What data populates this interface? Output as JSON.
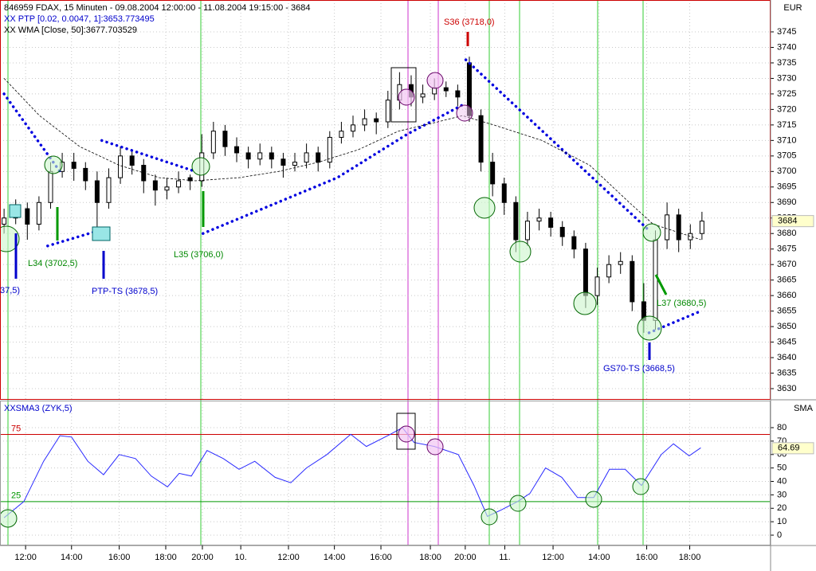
{
  "chart_data": [
    {
      "type": "candlestick",
      "title": "846959  FDAX, 15 Minuten - 09.08.2004 12:00:00 - 11.08.2004 19:15:00 - 3684",
      "axis_label": "EUR",
      "last_value": 3684,
      "xlim": [
        0,
        132.5
      ],
      "ylim": [
        3626.41,
        3755.27
      ],
      "yticks": [
        3630,
        3635,
        3640,
        3645,
        3650,
        3655,
        3660,
        3665,
        3670,
        3675,
        3680,
        3685,
        3690,
        3695,
        3700,
        3705,
        3710,
        3715,
        3720,
        3725,
        3730,
        3735,
        3740,
        3745
      ],
      "grid": true,
      "candles": {
        "x": [
          0.7,
          2.7,
          4.7,
          6.7,
          8.7,
          10.7,
          12.7,
          14.7,
          16.7,
          18.7,
          20.7,
          22.7,
          24.7,
          26.7,
          28.7,
          30.7,
          32.7,
          34.7,
          36.7,
          38.7,
          40.7,
          42.7,
          44.7,
          46.7,
          48.7,
          50.7,
          52.7,
          54.7,
          56.7,
          58.7,
          60.7,
          62.7,
          64.7,
          66.7,
          68.7,
          70.7,
          72.7,
          74.7,
          76.7,
          78.7,
          80.7,
          82.7,
          84.7,
          86.7,
          88.7,
          90.7,
          92.7,
          94.7,
          96.7,
          98.7,
          100.7,
          102.7,
          104.7,
          106.7,
          108.7,
          110.7,
          112.7,
          114.7,
          116.7,
          118.7,
          120.7
        ],
        "open": [
          3683,
          3685,
          3688,
          3683,
          3690,
          3700,
          3703,
          3701,
          3697,
          3690,
          3698,
          3705,
          3702,
          3697,
          3694,
          3695,
          3698,
          3697,
          3706,
          3713,
          3708,
          3706,
          3704,
          3706,
          3704,
          3702,
          3703,
          3706,
          3703,
          3711,
          3713,
          3715,
          3717,
          3716,
          3723,
          3728,
          3724,
          3725,
          3727,
          3726,
          3735,
          3718,
          3703,
          3696,
          3690,
          3678,
          3684,
          3685,
          3682,
          3679,
          3675,
          3660,
          3666,
          3670,
          3671,
          3658,
          3652,
          3678,
          3686,
          3678,
          3680
        ],
        "high": [
          3688,
          3691,
          3690,
          3692,
          3703,
          3706,
          3706,
          3703,
          3700,
          3701,
          3708,
          3707,
          3704,
          3699,
          3698,
          3700,
          3699,
          3712,
          3716,
          3715,
          3711,
          3708,
          3709,
          3708,
          3706,
          3706,
          3709,
          3708,
          3713,
          3716,
          3718,
          3720,
          3719,
          3726,
          3732,
          3731,
          3728,
          3730,
          3729,
          3728,
          3737,
          3720,
          3706,
          3698,
          3692,
          3687,
          3688,
          3687,
          3684,
          3681,
          3677,
          3669,
          3673,
          3674,
          3673,
          3664,
          3681,
          3690,
          3688,
          3683,
          3687
        ],
        "low": [
          3680,
          3683,
          3678,
          3681,
          3688,
          3698,
          3697,
          3694,
          3680,
          3688,
          3696,
          3699,
          3693,
          3689,
          3691,
          3693,
          3694,
          3695,
          3704,
          3705,
          3703,
          3701,
          3702,
          3701,
          3698,
          3700,
          3701,
          3700,
          3701,
          3709,
          3711,
          3713,
          3712,
          3714,
          3720,
          3721,
          3722,
          3723,
          3724,
          3721,
          3716,
          3700,
          3692,
          3686,
          3674,
          3676,
          3681,
          3679,
          3676,
          3672,
          3656,
          3657,
          3664,
          3667,
          3655,
          3648,
          3649,
          3675,
          3674,
          3675,
          3678
        ],
        "close": [
          3685,
          3688,
          3683,
          3690,
          3700,
          3703,
          3701,
          3697,
          3690,
          3698,
          3705,
          3702,
          3697,
          3694,
          3695,
          3697,
          3697,
          3706,
          3713,
          3708,
          3706,
          3704,
          3706,
          3704,
          3702,
          3703,
          3706,
          3703,
          3711,
          3713,
          3715,
          3717,
          3716,
          3723,
          3728,
          3724,
          3725,
          3727,
          3726,
          3724,
          3718,
          3703,
          3696,
          3690,
          3678,
          3684,
          3685,
          3682,
          3679,
          3675,
          3660,
          3666,
          3670,
          3671,
          3658,
          3652,
          3678,
          3686,
          3678,
          3680,
          3684
        ]
      },
      "series": [
        {
          "name": "XX PTP [0.02, 0.0047, 1]:3653.773495",
          "color": "#0000e0",
          "style": "dotted",
          "x": [
            0.7,
            10.3,
            10.4,
            8.2,
            17.1,
            17.3,
            17.5,
            33.6,
            34.0,
            34.9,
            58,
            70,
            80.1,
            80.1,
            80.1,
            111.6,
            111.6,
            111.6,
            120.5
          ],
          "values": [
            3725,
            3700,
            null,
            3676,
            3681,
            null,
            3710,
            3700,
            null,
            3680,
            3698,
            3712,
            3722,
            null,
            3736,
            3681,
            null,
            3648,
            3655
          ]
        },
        {
          "name": "XX WMA [Close, 50]:3677.703529",
          "color": "#000000",
          "style": "dashed",
          "x": [
            0.7,
            6.8,
            13.7,
            20.5,
            27.4,
            33.6,
            41.1,
            47.9,
            54.8,
            61.6,
            68.5,
            75.3,
            79.5,
            84.9,
            93.2,
            101.4,
            108.2,
            112.3,
            120.5
          ],
          "values": [
            3730,
            3718,
            3708,
            3702,
            3698,
            3697,
            3698,
            3700,
            3703,
            3707,
            3713,
            3716,
            3718,
            3715,
            3710,
            3702,
            3690,
            3683,
            3678
          ]
        }
      ],
      "annotations": [
        "37,5)",
        "L34 (3702,5)",
        "PTP-TS (3678,5)",
        "L35 (3706,0)",
        "S36 (3718,0)",
        "L37 (3680,5)",
        "GS70-TS (3668,5)"
      ]
    },
    {
      "type": "line",
      "title": "XXSMA3 (ZYK,5)",
      "axis_label": "SMA",
      "last_value": 64.69,
      "xlim": [
        0,
        132.5
      ],
      "ylim": [
        -7.7,
        100.15
      ],
      "yticks": [
        0,
        10,
        20,
        30,
        40,
        50,
        60,
        70,
        80
      ],
      "xticks": [
        {
          "value": 4.4,
          "label": "12:00"
        },
        {
          "value": 12.3,
          "label": "14:00"
        },
        {
          "value": 20.5,
          "label": "16:00"
        },
        {
          "value": 28.5,
          "label": "18:00"
        },
        {
          "value": 34.8,
          "label": "20:00"
        },
        {
          "value": 41.4,
          "label": "10."
        },
        {
          "value": 49.6,
          "label": "12:00"
        },
        {
          "value": 57.5,
          "label": "14:00"
        },
        {
          "value": 65.5,
          "label": "16:00"
        },
        {
          "value": 74,
          "label": "18:00"
        },
        {
          "value": 80,
          "label": "20:00"
        },
        {
          "value": 86.8,
          "label": "11."
        },
        {
          "value": 95.1,
          "label": "12:00"
        },
        {
          "value": 103,
          "label": "14:00"
        },
        {
          "value": 111.2,
          "label": "16:00"
        },
        {
          "value": 118.6,
          "label": "18:00"
        }
      ],
      "levels": [
        75,
        25
      ],
      "level_colors": [
        "#cc0000",
        "#009900"
      ],
      "series": [
        {
          "name": "SMA3",
          "color": "#2a2aff",
          "x": [
            0.7,
            4.1,
            7.5,
            10.3,
            12.3,
            15.1,
            17.8,
            20.5,
            23.3,
            26,
            28.8,
            30.8,
            32.9,
            35.6,
            38.4,
            41.1,
            43.8,
            47.3,
            50,
            52.7,
            56.2,
            60.3,
            63,
            67.1,
            69.2,
            71.2,
            74.7,
            78.8,
            81.5,
            83.8,
            86.3,
            89,
            91.1,
            93.8,
            96.6,
            99.3,
            102.1,
            104.8,
            107.5,
            110.3,
            113.7,
            115.8,
            118.5,
            120.5
          ],
          "values": [
            13,
            25,
            55,
            74,
            73,
            55,
            45,
            60,
            57,
            44,
            36,
            46,
            44,
            63,
            57,
            49,
            55,
            43,
            39,
            50,
            60,
            75,
            66,
            75,
            80,
            69,
            66,
            60,
            37,
            14,
            19,
            25,
            31,
            50,
            43,
            28,
            28,
            49,
            49,
            37,
            60,
            68,
            59,
            65
          ]
        }
      ]
    }
  ]
}
